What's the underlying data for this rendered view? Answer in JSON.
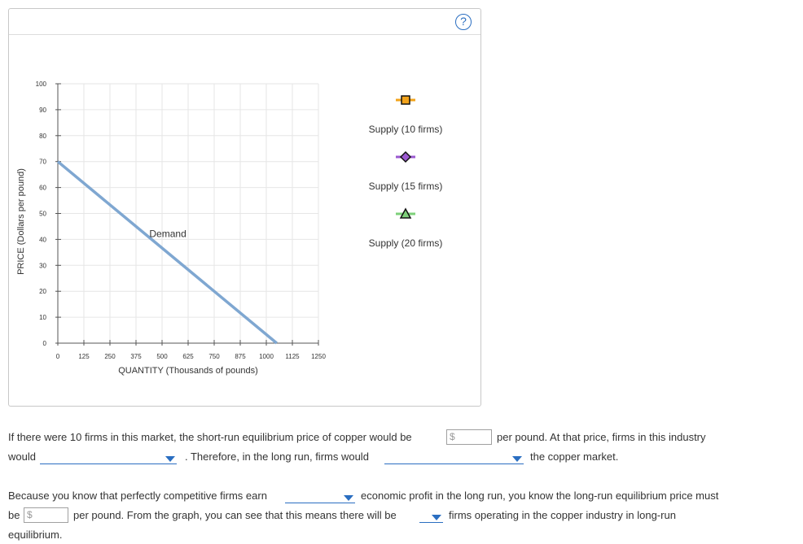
{
  "help": {
    "glyph": "?"
  },
  "chart_data": {
    "type": "line",
    "xlabel": "QUANTITY (Thousands of pounds)",
    "ylabel": "PRICE (Dollars per pound)",
    "xlim": [
      0,
      1250
    ],
    "ylim": [
      0,
      100
    ],
    "x_ticks": [
      0,
      125,
      250,
      375,
      500,
      625,
      750,
      875,
      1000,
      1125,
      1250
    ],
    "y_ticks": [
      0,
      10,
      20,
      30,
      40,
      50,
      60,
      70,
      80,
      90,
      100
    ],
    "grid": true,
    "series": [
      {
        "name": "Demand",
        "color": "#7fa7d1",
        "points": [
          [
            0,
            70
          ],
          [
            1050,
            0
          ]
        ]
      }
    ],
    "legend_tools": [
      {
        "label": "Supply (10 firms)",
        "marker": "square",
        "line_color": "#f2a31b",
        "marker_fill": "#f2a31b"
      },
      {
        "label": "Supply (15 firms)",
        "marker": "diamond",
        "line_color": "#9b59d0",
        "marker_fill": "#9b59d0"
      },
      {
        "label": "Supply (20 firms)",
        "marker": "triangle",
        "line_color": "#7ed07a",
        "marker_fill": "#7ed07a"
      }
    ]
  },
  "question": {
    "p1_part1": "If there were 10 firms in this market, the short-run equilibrium price of copper would be",
    "p1_part2": "per pound. At that price, firms in this industry",
    "p1_would": "would",
    "p1_part3": ". Therefore, in the long run, firms would",
    "p1_part4": "the copper market.",
    "p2_part1": "Because you know that perfectly competitive firms earn",
    "p2_part2": "economic profit in the long run, you know the long-run equilibrium price must",
    "p2_be": "be",
    "p2_part3": "per pound. From the graph, you can see that this means there will be",
    "p2_part4": "firms operating in the copper industry in long-run",
    "p2_part5": "equilibrium.",
    "currency_symbol": "$"
  }
}
